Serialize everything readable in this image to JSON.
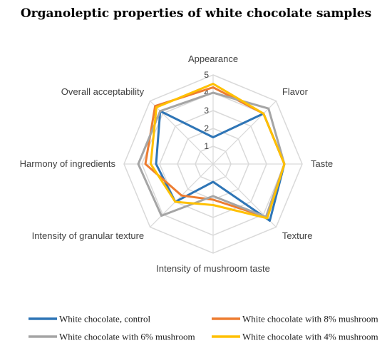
{
  "chart_data": {
    "type": "radar",
    "title": "Organoleptic properties of white chocolate samples",
    "categories": [
      "Appearance",
      "Flavor",
      "Taste",
      "Texture",
      "Intensity of mushroom taste",
      "Intensity of granular texture",
      "Harmony of ingredients",
      "Overall acceptability"
    ],
    "rlim": [
      0,
      5
    ],
    "ticks": [
      "1",
      "2",
      "3",
      "4",
      "5"
    ],
    "grid": true,
    "legend_position": "bottom",
    "series": [
      {
        "name": "White chocolate, control",
        "color": "#2e75b6",
        "values": [
          1.5,
          4.0,
          4.0,
          4.5,
          1.0,
          3.0,
          3.2,
          4.2
        ]
      },
      {
        "name": "White chocolate with 8% mushroom",
        "color": "#ed7d31",
        "values": [
          4.3,
          4.0,
          4.0,
          4.2,
          2.0,
          2.5,
          3.8,
          4.6
        ]
      },
      {
        "name": "White chocolate with 6% mushroom",
        "color": "#a5a5a5",
        "values": [
          4.0,
          4.4,
          4.0,
          4.2,
          1.8,
          4.1,
          4.2,
          4.2
        ]
      },
      {
        "name": "White chocolate with 4% mushroom",
        "color": "#ffc000",
        "values": [
          4.5,
          4.0,
          4.0,
          4.3,
          2.3,
          3.0,
          3.5,
          4.5
        ]
      }
    ]
  }
}
